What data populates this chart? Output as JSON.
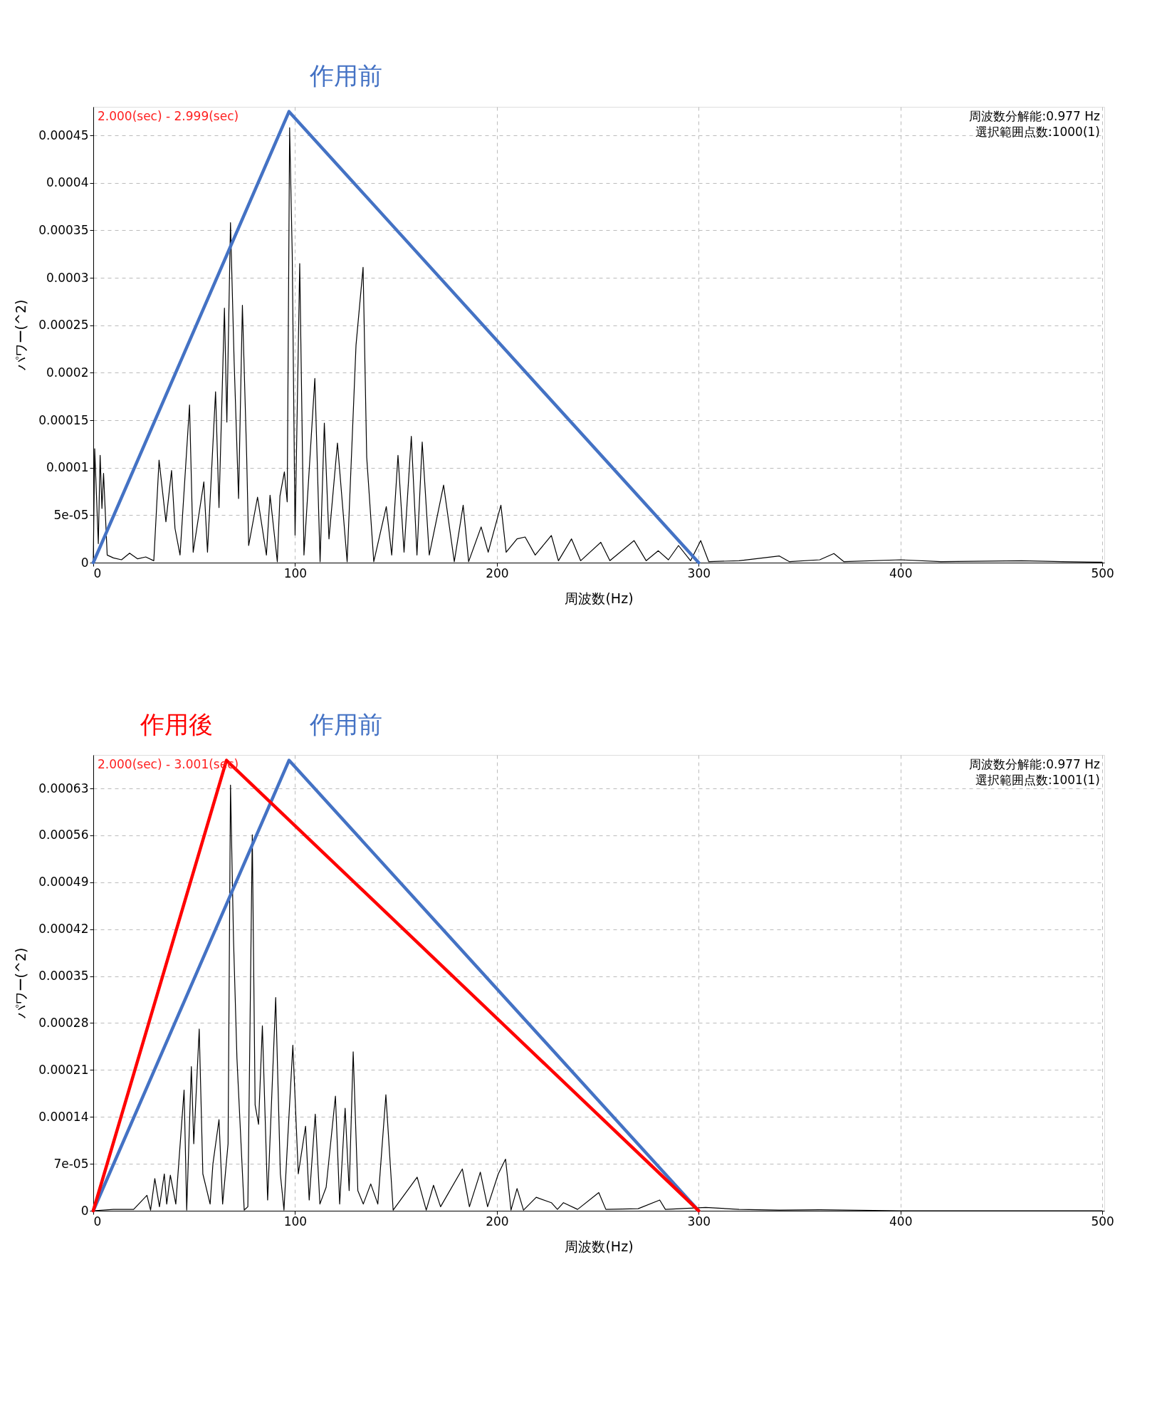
{
  "chart_data": [
    {
      "type": "line",
      "xlabel": "周波数(Hz)",
      "ylabel": "パワー(^2)",
      "xlim": [
        0,
        501
      ],
      "xticks": [
        0,
        100,
        200,
        300,
        400,
        500
      ],
      "ylim": [
        0,
        0.00048
      ],
      "yticks": [
        {
          "value": 0,
          "label": "0"
        },
        {
          "value": 5e-05,
          "label": "5e-05"
        },
        {
          "value": 0.0001,
          "label": "0.0001"
        },
        {
          "value": 0.00015,
          "label": "0.00015"
        },
        {
          "value": 0.0002,
          "label": "0.0002"
        },
        {
          "value": 0.00025,
          "label": "0.00025"
        },
        {
          "value": 0.0003,
          "label": "0.0003"
        },
        {
          "value": 0.00035,
          "label": "0.00035"
        },
        {
          "value": 0.0004,
          "label": "0.0004"
        },
        {
          "value": 0.00045,
          "label": "0.00045"
        }
      ],
      "grid": true,
      "annotations": [
        "2.000(sec) - 2.999(sec)",
        "周波数分解能:0.977 Hz",
        "選択範囲点数:1000(1)"
      ],
      "series": [
        {
          "color": "#000000",
          "x": [
            0,
            0.7,
            2.5,
            3.4,
            4.3,
            5.1,
            6.9,
            10,
            14,
            18,
            22,
            26,
            30,
            32.6,
            36,
            38.8,
            40.5,
            43,
            47.7,
            49.5,
            54.8,
            56.6,
            60.6,
            62.3,
            65,
            66.2,
            68,
            69.8,
            72,
            73.9,
            76,
            77,
            81.4,
            85.8,
            87.6,
            91.2,
            92.5,
            94.7,
            96.1,
            97.3,
            98.6,
            100,
            102.3,
            104.4,
            109.8,
            112.4,
            114.5,
            116.8,
            121,
            125.8,
            130.2,
            133.7,
            135.5,
            139,
            145.2,
            147.9,
            151,
            154,
            157.6,
            160.4,
            163,
            166.5,
            173.6,
            178.9,
            183.3,
            186,
            192.2,
            195.7,
            202,
            204.6,
            210,
            214,
            219,
            227,
            230.5,
            237,
            241.5,
            251.5,
            256,
            268,
            274,
            280,
            285,
            290,
            296,
            301,
            305,
            320,
            340,
            345,
            360,
            367,
            372,
            400,
            420,
            460,
            480,
            500
          ],
          "values": [
            0,
            0.00012,
            2e-05,
            0.000113,
            5.7e-05,
            9.4e-05,
            8e-06,
            5e-06,
            3e-06,
            1e-05,
            4e-06,
            6e-06,
            2e-06,
            0.000108,
            4.3e-05,
            9.7e-05,
            3.6e-05,
            8e-06,
            0.000166,
            1.1e-05,
            8.5e-05,
            1.1e-05,
            0.00018,
            5.8e-05,
            0.000268,
            0.000148,
            0.000358,
            0.000212,
            6.75e-05,
            0.000271,
            0.000113,
            1.8e-05,
            6.9e-05,
            8e-06,
            7.1e-05,
            1e-06,
            7e-05,
            9.56e-05,
            6.4e-05,
            0.000458,
            0.000324,
            2.9e-05,
            0.000315,
            8e-06,
            0.000194,
            1e-06,
            0.000147,
            2.5e-05,
            0.000126,
            1e-06,
            0.000229,
            0.000311,
            0.000111,
            1e-06,
            5.9e-05,
            8e-06,
            0.000113,
            1.1e-05,
            0.000133,
            8e-06,
            0.000127,
            8e-06,
            8.16e-05,
            1e-06,
            6.05e-05,
            1e-06,
            3.76e-05,
            1.1e-05,
            6.05e-05,
            1.1e-05,
            2.5e-05,
            2.7e-05,
            8e-06,
            2.86e-05,
            2e-06,
            2.5e-05,
            2e-06,
            2.14e-05,
            2e-06,
            2.32e-05,
            2e-06,
            1.25e-05,
            3e-06,
            1.8e-05,
            2e-06,
            2.32e-05,
            1e-06,
            2e-06,
            7e-06,
            1e-06,
            3e-06,
            9.6e-06,
            1e-06,
            3e-06,
            1e-06,
            2e-06,
            1e-06,
            5e-07
          ]
        },
        {
          "name": "作用前",
          "color": "#4472c4",
          "x": [
            0,
            97,
            300,
            0
          ],
          "values": [
            0,
            0.000475,
            0,
            0
          ]
        }
      ]
    },
    {
      "type": "line",
      "xlabel": "周波数(Hz)",
      "ylabel": "パワー(^2)",
      "xlim": [
        0,
        501
      ],
      "xticks": [
        0,
        100,
        200,
        300,
        400,
        500
      ],
      "ylim": [
        0,
        0.00068
      ],
      "yticks": [
        {
          "value": 0,
          "label": "0"
        },
        {
          "value": 7e-05,
          "label": "7e-05"
        },
        {
          "value": 0.00014,
          "label": "0.00014"
        },
        {
          "value": 0.00021,
          "label": "0.00021"
        },
        {
          "value": 0.00028,
          "label": "0.00028"
        },
        {
          "value": 0.00035,
          "label": "0.00035"
        },
        {
          "value": 0.00042,
          "label": "0.00042"
        },
        {
          "value": 0.00049,
          "label": "0.00049"
        },
        {
          "value": 0.00056,
          "label": "0.00056"
        },
        {
          "value": 0.00063,
          "label": "0.00063"
        }
      ],
      "grid": true,
      "annotations": [
        "2.000(sec) - 3.001(sec)",
        "周波数分解能:0.977 Hz",
        "選択範囲点数:1001(1)"
      ],
      "series": [
        {
          "color": "#000000",
          "x": [
            0,
            10,
            20,
            26.6,
            28.4,
            30.5,
            32.8,
            35.2,
            36.4,
            38.2,
            40.9,
            45,
            46.3,
            48.6,
            49.8,
            52.5,
            54.3,
            57.9,
            59.3,
            62.3,
            64.1,
            66.8,
            68,
            69.5,
            71.2,
            74.8,
            76.6,
            78.8,
            80.2,
            81.9,
            83.8,
            86.4,
            90.4,
            92.7,
            94.5,
            96.3,
            98.9,
            101.6,
            105.2,
            107,
            110,
            112.3,
            115.4,
            120,
            122.1,
            124.8,
            126.8,
            128.8,
            131.1,
            133.8,
            137.5,
            141,
            145,
            148.6,
            160.5,
            165,
            168.6,
            172.1,
            182.9,
            186.4,
            191.8,
            195.4,
            200.7,
            204.3,
            207,
            210,
            213.2,
            219.5,
            227,
            230,
            233,
            240,
            250.5,
            254,
            270,
            280.7,
            283.5,
            303.5,
            320,
            340,
            360,
            400,
            500
          ],
          "values": [
            0,
            2e-06,
            2e-06,
            2.3e-05,
            1e-06,
            4.8e-05,
            6e-06,
            5.5e-05,
            1e-05,
            5.3e-05,
            1e-05,
            0.00018,
            1e-06,
            0.000215,
            0.0001,
            0.000271,
            5.5e-05,
            1e-05,
            7e-05,
            0.000136,
            1e-05,
            0.0001,
            0.000635,
            0.000404,
            0.000227,
            1e-06,
            6e-06,
            0.000561,
            0.000158,
            0.000129,
            0.000276,
            1.6e-05,
            0.000318,
            5.5e-05,
            1e-06,
            0.000104,
            0.000247,
            5.5e-05,
            0.000126,
            1.6e-05,
            0.000144,
            1e-05,
            3.5e-05,
            0.000171,
            1e-05,
            0.000153,
            3e-05,
            0.000237,
            3e-05,
            1e-05,
            4e-05,
            1e-05,
            0.000173,
            1e-06,
            5e-05,
            1e-06,
            3.8e-05,
            6e-06,
            6.24e-05,
            6e-06,
            5.75e-05,
            6e-06,
            5.5e-05,
            7.7e-05,
            1e-06,
            3.3e-05,
            1e-06,
            2e-05,
            1.2e-05,
            2e-06,
            1.2e-05,
            2e-06,
            2.7e-05,
            2e-06,
            3e-06,
            1.6e-05,
            2e-06,
            5e-06,
            2e-06,
            1e-06,
            1.5e-06,
            0,
            0
          ]
        },
        {
          "name": "作用前",
          "color": "#4472c4",
          "x": [
            0,
            97,
            300,
            0
          ],
          "values": [
            0,
            0.000672,
            0,
            0
          ]
        },
        {
          "name": "作用後",
          "color": "#ff0000",
          "x": [
            0,
            66,
            300,
            0
          ],
          "values": [
            0,
            0.000672,
            0,
            0
          ]
        }
      ]
    }
  ]
}
